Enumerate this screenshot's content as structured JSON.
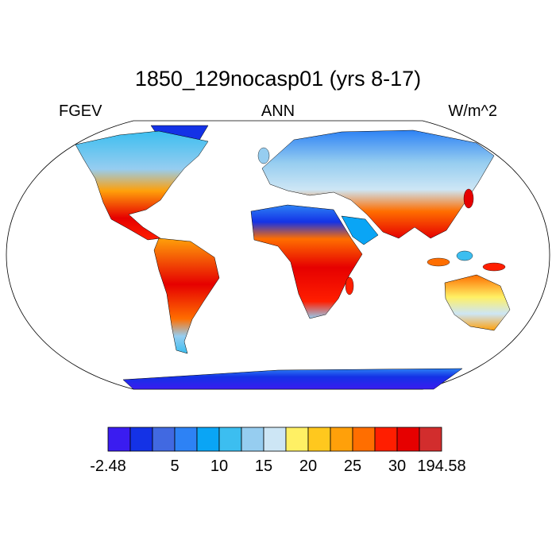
{
  "title": "1850_129nocasp01 (yrs 8-17)",
  "left_string": "FGEV",
  "center_string": "ANN",
  "right_string": "W/m^2",
  "colorbar": {
    "colors": [
      "#3a1cf0",
      "#1432e6",
      "#4169e1",
      "#2d82f5",
      "#0aa5f5",
      "#3cbef0",
      "#96cdf0",
      "#cde6f5",
      "#fff064",
      "#ffc81e",
      "#ffa00a",
      "#ff6e00",
      "#ff1e00",
      "#e60000",
      "#d22d2d"
    ],
    "labels": [
      -2.48,
      5,
      10,
      15,
      20,
      25,
      30,
      194.58
    ]
  }
}
